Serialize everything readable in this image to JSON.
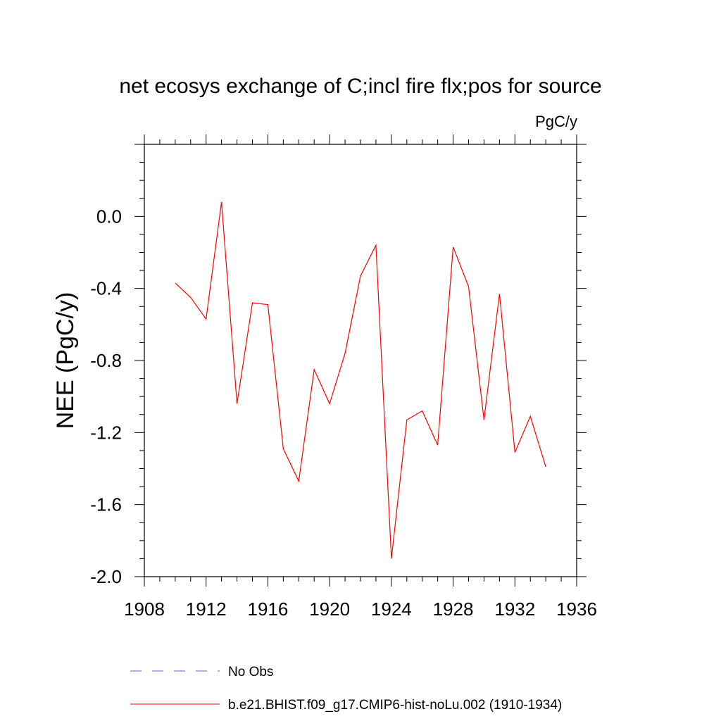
{
  "chart_data": {
    "type": "line",
    "title": "net ecosys exchange of C;incl fire flx;pos for source",
    "units_label": "PgC/y",
    "xlabel": "",
    "ylabel": "NEE  (PgC/y)",
    "xlim": [
      1908,
      1936
    ],
    "ylim": [
      -2.0,
      0.4
    ],
    "x_ticks": [
      1908,
      1912,
      1916,
      1920,
      1924,
      1928,
      1932,
      1936
    ],
    "x_tick_labels": [
      "1908",
      "1912",
      "1916",
      "1920",
      "1924",
      "1928",
      "1932",
      "1936"
    ],
    "y_ticks": [
      -2.0,
      -1.6,
      -1.2,
      -0.8,
      -0.4,
      0.0
    ],
    "y_tick_labels": [
      "-2.0",
      "-1.6",
      "-1.2",
      "-0.8",
      "-0.4",
      "0.0"
    ],
    "grid": false,
    "legend_placement": "bottom",
    "series": [
      {
        "name": "b.e21.BHIST.f09_g17.CMIP6-hist-noLu.002 (1910-1934)",
        "color": "#ff0000",
        "style": "solid",
        "x": [
          1910,
          1911,
          1912,
          1913,
          1914,
          1915,
          1916,
          1917,
          1918,
          1919,
          1920,
          1921,
          1922,
          1923,
          1924,
          1925,
          1926,
          1927,
          1928,
          1929,
          1930,
          1931,
          1932,
          1933,
          1934
        ],
        "y": [
          -0.37,
          -0.45,
          -0.57,
          0.08,
          -1.04,
          -0.48,
          -0.49,
          -1.29,
          -1.47,
          -0.85,
          -1.04,
          -0.76,
          -0.33,
          -0.16,
          -1.9,
          -1.13,
          -1.08,
          -1.27,
          -0.17,
          -0.39,
          -1.13,
          -0.43,
          -1.31,
          -1.11,
          -1.39
        ]
      },
      {
        "name": "No Obs",
        "color": "#6a5acd",
        "style": "dashed",
        "x": [],
        "y": []
      }
    ]
  }
}
